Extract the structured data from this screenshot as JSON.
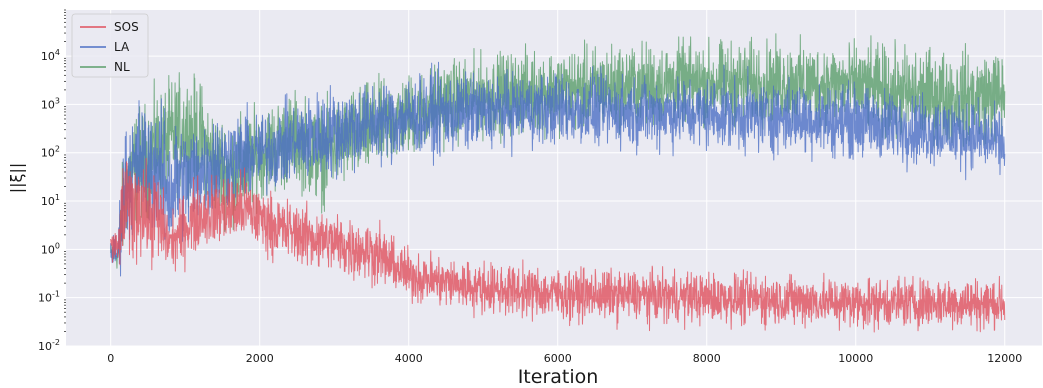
{
  "chart_data": {
    "type": "line",
    "title": "",
    "xlabel": "Iteration",
    "ylabel": "||ξ||",
    "yscale": "log",
    "xlim": [
      -600,
      12500
    ],
    "ylim": [
      0.01,
      90000
    ],
    "grid": true,
    "legend": {
      "position": "top-left",
      "entries": [
        "SOS",
        "LA",
        "NL"
      ]
    },
    "x_ticks": [
      {
        "value": 0,
        "label": "0"
      },
      {
        "value": 2000,
        "label": "2000"
      },
      {
        "value": 4000,
        "label": "4000"
      },
      {
        "value": 6000,
        "label": "6000"
      },
      {
        "value": 8000,
        "label": "8000"
      },
      {
        "value": 10000,
        "label": "10000"
      },
      {
        "value": 12000,
        "label": "12000"
      }
    ],
    "y_ticks": [
      {
        "value": 0.01,
        "base": "10",
        "exp": "-2"
      },
      {
        "value": 0.1,
        "base": "10",
        "exp": "-1"
      },
      {
        "value": 1,
        "base": "10",
        "exp": "0"
      },
      {
        "value": 10,
        "base": "10",
        "exp": "1"
      },
      {
        "value": 100,
        "base": "10",
        "exp": "2"
      },
      {
        "value": 1000,
        "base": "10",
        "exp": "3"
      },
      {
        "value": 10000,
        "base": "10",
        "exp": "4"
      }
    ],
    "series": [
      {
        "name": "SOS",
        "color": "#e0505c",
        "x": [
          0,
          100,
          150,
          200,
          300,
          400,
          500,
          600,
          700,
          800,
          900,
          1000,
          1200,
          1400,
          1600,
          1800,
          2000,
          2200,
          2400,
          2600,
          2800,
          3000,
          3200,
          3400,
          3600,
          3800,
          4000,
          4400,
          5000,
          6000,
          7000,
          8000,
          9000,
          10000,
          11000,
          12000
        ],
        "center": [
          1.2,
          1.05,
          4.0,
          8.0,
          6.0,
          12.0,
          4.0,
          6.0,
          2.5,
          1.4,
          1.8,
          3.0,
          5.5,
          6.0,
          6.5,
          7.0,
          4.5,
          3.0,
          2.4,
          2.0,
          1.6,
          1.4,
          1.1,
          1.0,
          0.8,
          0.45,
          0.3,
          0.22,
          0.16,
          0.12,
          0.11,
          0.1,
          0.09,
          0.08,
          0.08,
          0.075
        ],
        "spread": [
          0.15,
          0.2,
          0.5,
          0.5,
          0.5,
          0.55,
          0.45,
          0.45,
          0.4,
          0.25,
          0.3,
          0.35,
          0.35,
          0.35,
          0.35,
          0.35,
          0.3,
          0.3,
          0.3,
          0.3,
          0.3,
          0.3,
          0.3,
          0.3,
          0.3,
          0.25,
          0.25,
          0.25,
          0.25,
          0.25,
          0.25,
          0.25,
          0.25,
          0.25,
          0.25,
          0.25
        ]
      },
      {
        "name": "LA",
        "color": "#4c6fc4",
        "x": [
          0,
          100,
          150,
          200,
          300,
          400,
          500,
          600,
          700,
          800,
          900,
          1000,
          1200,
          1400,
          1600,
          1800,
          2000,
          2500,
          3000,
          3500,
          4000,
          4500,
          5000,
          5500,
          6000,
          7000,
          8000,
          9000,
          10000,
          10500,
          11000,
          11500,
          12000
        ],
        "center": [
          0.9,
          0.85,
          8.0,
          25.0,
          40.0,
          80.0,
          50.0,
          60.0,
          30.0,
          15.0,
          30.0,
          25.0,
          45.0,
          60.0,
          70.0,
          80.0,
          100.0,
          170.0,
          280.0,
          400.0,
          550.0,
          650.0,
          700.0,
          800.0,
          800.0,
          700.0,
          650.0,
          550.0,
          450.0,
          350.0,
          300.0,
          250.0,
          150.0
        ],
        "spread": [
          0.15,
          0.2,
          0.6,
          0.6,
          0.6,
          0.6,
          0.6,
          0.65,
          0.65,
          0.65,
          0.6,
          0.55,
          0.5,
          0.5,
          0.45,
          0.45,
          0.4,
          0.4,
          0.45,
          0.4,
          0.4,
          0.4,
          0.35,
          0.35,
          0.35,
          0.35,
          0.35,
          0.35,
          0.35,
          0.35,
          0.35,
          0.35,
          0.3
        ]
      },
      {
        "name": "NL",
        "color": "#5a9e6a",
        "x": [
          0,
          100,
          150,
          200,
          300,
          400,
          500,
          600,
          700,
          800,
          900,
          1000,
          1200,
          1400,
          1600,
          1800,
          2000,
          2500,
          2800,
          3000,
          3500,
          4000,
          4500,
          5000,
          5500,
          6000,
          7000,
          8000,
          9000,
          10000,
          10500,
          11000,
          11500,
          12000
        ],
        "center": [
          0.8,
          0.75,
          4.0,
          20.0,
          40.0,
          60.0,
          80.0,
          120.0,
          150.0,
          200.0,
          250.0,
          300.0,
          200.0,
          60.0,
          40.0,
          50.0,
          100.0,
          200.0,
          80.0,
          150.0,
          300.0,
          600.0,
          1100.0,
          1500.0,
          1800.0,
          2000.0,
          2500.0,
          2800.0,
          2800.0,
          2500.0,
          1700.0,
          1500.0,
          1400.0,
          1600.0
        ],
        "spread": [
          0.12,
          0.15,
          0.5,
          0.5,
          0.55,
          0.55,
          0.55,
          0.55,
          0.55,
          0.55,
          0.55,
          0.55,
          0.55,
          0.5,
          0.5,
          0.5,
          0.45,
          0.45,
          0.5,
          0.45,
          0.45,
          0.4,
          0.4,
          0.4,
          0.4,
          0.4,
          0.4,
          0.4,
          0.4,
          0.4,
          0.45,
          0.45,
          0.45,
          0.45
        ]
      }
    ]
  }
}
